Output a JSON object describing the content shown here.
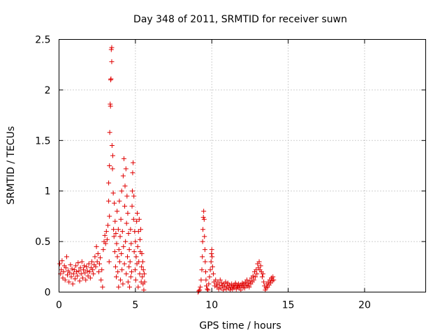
{
  "chart_data": {
    "type": "scatter",
    "title": "Day 348 of 2011, SRMTID for receiver suwn",
    "xlabel": "GPS time / hours",
    "ylabel": "SRMTID / TECUs",
    "xlim": [
      0,
      24
    ],
    "ylim": [
      0,
      2.5
    ],
    "x_ticks": [
      "0",
      "5",
      "10",
      "15",
      "20"
    ],
    "y_ticks": [
      "0",
      "0.5",
      "1",
      "1.5",
      "2",
      "2.5"
    ],
    "grid": true,
    "legend": "none",
    "marker": "plus",
    "series_color": "#e00000",
    "series": [
      {
        "points": [
          [
            0.05,
            0.28
          ],
          [
            0.1,
            0.18
          ],
          [
            0.15,
            0.22
          ],
          [
            0.2,
            0.31
          ],
          [
            0.25,
            0.14
          ],
          [
            0.3,
            0.2
          ],
          [
            0.35,
            0.26
          ],
          [
            0.4,
            0.12
          ],
          [
            0.45,
            0.24
          ],
          [
            0.5,
            0.35
          ],
          [
            0.55,
            0.17
          ],
          [
            0.6,
            0.21
          ],
          [
            0.65,
            0.1
          ],
          [
            0.7,
            0.19
          ],
          [
            0.75,
            0.27
          ],
          [
            0.8,
            0.15
          ],
          [
            0.85,
            0.23
          ],
          [
            0.9,
            0.08
          ],
          [
            0.95,
            0.18
          ],
          [
            1.0,
            0.22
          ],
          [
            1.05,
            0.13
          ],
          [
            1.1,
            0.26
          ],
          [
            1.15,
            0.2
          ],
          [
            1.2,
            0.16
          ],
          [
            1.25,
            0.29
          ],
          [
            1.3,
            0.21
          ],
          [
            1.35,
            0.11
          ],
          [
            1.4,
            0.24
          ],
          [
            1.45,
            0.18
          ],
          [
            1.5,
            0.3
          ],
          [
            1.55,
            0.14
          ],
          [
            1.6,
            0.22
          ],
          [
            1.65,
            0.26
          ],
          [
            1.7,
            0.19
          ],
          [
            1.75,
            0.12
          ],
          [
            1.8,
            0.25
          ],
          [
            1.85,
            0.21
          ],
          [
            1.9,
            0.16
          ],
          [
            1.95,
            0.28
          ],
          [
            2.0,
            0.2
          ],
          [
            2.05,
            0.14
          ],
          [
            2.1,
            0.24
          ],
          [
            2.15,
            0.3
          ],
          [
            2.2,
            0.22
          ],
          [
            2.25,
            0.18
          ],
          [
            2.3,
            0.27
          ],
          [
            2.35,
            0.35
          ],
          [
            2.4,
            0.25
          ],
          [
            2.45,
            0.45
          ],
          [
            2.5,
            0.3
          ],
          [
            2.55,
            0.38
          ],
          [
            2.6,
            0.2
          ],
          [
            2.65,
            0.28
          ],
          [
            2.7,
            0.34
          ],
          [
            2.75,
            0.12
          ],
          [
            2.8,
            0.22
          ],
          [
            2.85,
            0.05
          ],
          [
            2.9,
            0.42
          ],
          [
            2.95,
            0.5
          ],
          [
            3.0,
            0.56
          ],
          [
            3.05,
            0.48
          ],
          [
            3.1,
            0.6
          ],
          [
            3.15,
            0.52
          ],
          [
            3.2,
            0.66
          ],
          [
            3.25,
            0.9
          ],
          [
            3.25,
            1.08
          ],
          [
            3.28,
            0.3
          ],
          [
            3.3,
            0.75
          ],
          [
            3.3,
            1.25
          ],
          [
            3.32,
            1.58
          ],
          [
            3.35,
            1.86
          ],
          [
            3.37,
            1.84
          ],
          [
            3.38,
            2.1
          ],
          [
            3.4,
            2.11
          ],
          [
            3.42,
            2.4
          ],
          [
            3.45,
            2.28
          ],
          [
            3.45,
            2.42
          ],
          [
            3.47,
            1.45
          ],
          [
            3.5,
            1.22
          ],
          [
            3.52,
            1.35
          ],
          [
            3.55,
            0.98
          ],
          [
            3.57,
            0.62
          ],
          [
            3.6,
            0.55
          ],
          [
            3.62,
            0.88
          ],
          [
            3.65,
            0.4
          ],
          [
            3.67,
            0.7
          ],
          [
            3.7,
            0.25
          ],
          [
            3.72,
            0.58
          ],
          [
            3.75,
            0.15
          ],
          [
            3.77,
            0.48
          ],
          [
            3.8,
            0.8
          ],
          [
            3.82,
            0.35
          ],
          [
            3.85,
            0.2
          ],
          [
            3.88,
            0.62
          ],
          [
            3.9,
            0.05
          ],
          [
            3.92,
            0.42
          ],
          [
            3.95,
            0.9
          ],
          [
            3.97,
            0.3
          ],
          [
            4.0,
            0.55
          ],
          [
            4.02,
            0.12
          ],
          [
            4.05,
            0.72
          ],
          [
            4.08,
            0.38
          ],
          [
            4.1,
            1.0
          ],
          [
            4.12,
            0.22
          ],
          [
            4.15,
            0.6
          ],
          [
            4.18,
            0.08
          ],
          [
            4.2,
            1.15
          ],
          [
            4.22,
            0.45
          ],
          [
            4.25,
            1.32
          ],
          [
            4.28,
            0.28
          ],
          [
            4.3,
            0.85
          ],
          [
            4.32,
            1.05
          ],
          [
            4.35,
            0.5
          ],
          [
            4.38,
            1.22
          ],
          [
            4.4,
            0.18
          ],
          [
            4.42,
            0.68
          ],
          [
            4.45,
            0.95
          ],
          [
            4.48,
            0.35
          ],
          [
            4.5,
            0.78
          ],
          [
            4.52,
            0.1
          ],
          [
            4.55,
            0.58
          ],
          [
            4.58,
            0.25
          ],
          [
            4.6,
            0.42
          ],
          [
            4.62,
            0.05
          ],
          [
            4.65,
            0.3
          ],
          [
            4.68,
            0.62
          ],
          [
            4.7,
            0.15
          ],
          [
            4.72,
            0.48
          ],
          [
            4.75,
            0.2
          ],
          [
            4.78,
            0.85
          ],
          [
            4.8,
            1.0
          ],
          [
            4.82,
            1.18
          ],
          [
            4.85,
            1.28
          ],
          [
            4.88,
            0.72
          ],
          [
            4.9,
            0.95
          ],
          [
            4.92,
            0.4
          ],
          [
            4.95,
            0.6
          ],
          [
            4.98,
            0.22
          ],
          [
            5.0,
            0.5
          ],
          [
            5.02,
            0.12
          ],
          [
            5.05,
            0.35
          ],
          [
            5.08,
            0.7
          ],
          [
            5.1,
            0.28
          ],
          [
            5.12,
            0.78
          ],
          [
            5.15,
            0.45
          ],
          [
            5.18,
            0.05
          ],
          [
            5.2,
            0.6
          ],
          [
            5.22,
            0.3
          ],
          [
            5.25,
            0.72
          ],
          [
            5.28,
            0.18
          ],
          [
            5.3,
            0.52
          ],
          [
            5.32,
            0.4
          ],
          [
            5.35,
            0.62
          ],
          [
            5.38,
            0.1
          ],
          [
            5.4,
            0.25
          ],
          [
            5.42,
            0.38
          ],
          [
            5.45,
            0.15
          ],
          [
            5.48,
            0.3
          ],
          [
            5.5,
            0.08
          ],
          [
            5.52,
            0.22
          ],
          [
            5.55,
            0.02
          ],
          [
            5.58,
            0.18
          ],
          [
            5.6,
            0.1
          ],
          [
            9.1,
            0.0
          ],
          [
            9.15,
            0.01
          ],
          [
            9.2,
            0.02
          ],
          [
            9.25,
            0.05
          ],
          [
            9.3,
            0.12
          ],
          [
            9.35,
            0.22
          ],
          [
            9.38,
            0.35
          ],
          [
            9.4,
            0.5
          ],
          [
            9.42,
            0.62
          ],
          [
            9.45,
            0.74
          ],
          [
            9.47,
            0.8
          ],
          [
            9.5,
            0.72
          ],
          [
            9.52,
            0.55
          ],
          [
            9.55,
            0.42
          ],
          [
            9.57,
            0.3
          ],
          [
            9.6,
            0.2
          ],
          [
            9.62,
            0.12
          ],
          [
            9.65,
            0.06
          ],
          [
            9.7,
            0.03
          ],
          [
            9.75,
            0.02
          ],
          [
            9.8,
            0.08
          ],
          [
            9.85,
            0.15
          ],
          [
            9.9,
            0.22
          ],
          [
            9.95,
            0.3
          ],
          [
            9.98,
            0.38
          ],
          [
            10.0,
            0.42
          ],
          [
            10.02,
            0.35
          ],
          [
            10.05,
            0.25
          ],
          [
            10.1,
            0.18
          ],
          [
            10.15,
            0.1
          ],
          [
            10.2,
            0.06
          ],
          [
            10.25,
            0.12
          ],
          [
            10.3,
            0.08
          ],
          [
            10.35,
            0.05
          ],
          [
            10.4,
            0.1
          ],
          [
            10.45,
            0.03
          ],
          [
            10.5,
            0.07
          ],
          [
            10.55,
            0.12
          ],
          [
            10.6,
            0.04
          ],
          [
            10.65,
            0.09
          ],
          [
            10.7,
            0.06
          ],
          [
            10.75,
            0.02
          ],
          [
            10.8,
            0.08
          ],
          [
            10.85,
            0.05
          ],
          [
            10.9,
            0.1
          ],
          [
            10.95,
            0.03
          ],
          [
            11.0,
            0.06
          ],
          [
            11.05,
            0.09
          ],
          [
            11.1,
            0.04
          ],
          [
            11.15,
            0.07
          ],
          [
            11.2,
            0.02
          ],
          [
            11.25,
            0.05
          ],
          [
            11.3,
            0.08
          ],
          [
            11.35,
            0.03
          ],
          [
            11.4,
            0.06
          ],
          [
            11.45,
            0.04
          ],
          [
            11.5,
            0.07
          ],
          [
            11.55,
            0.09
          ],
          [
            11.6,
            0.03
          ],
          [
            11.65,
            0.06
          ],
          [
            11.7,
            0.05
          ],
          [
            11.75,
            0.08
          ],
          [
            11.8,
            0.04
          ],
          [
            11.85,
            0.07
          ],
          [
            11.9,
            0.02
          ],
          [
            11.95,
            0.06
          ],
          [
            12.0,
            0.09
          ],
          [
            12.05,
            0.05
          ],
          [
            12.1,
            0.08
          ],
          [
            12.15,
            0.04
          ],
          [
            12.2,
            0.1
          ],
          [
            12.25,
            0.07
          ],
          [
            12.3,
            0.12
          ],
          [
            12.35,
            0.06
          ],
          [
            12.4,
            0.09
          ],
          [
            12.45,
            0.05
          ],
          [
            12.5,
            0.11
          ],
          [
            12.55,
            0.08
          ],
          [
            12.6,
            0.14
          ],
          [
            12.65,
            0.1
          ],
          [
            12.7,
            0.16
          ],
          [
            12.75,
            0.12
          ],
          [
            12.8,
            0.2
          ],
          [
            12.85,
            0.15
          ],
          [
            12.9,
            0.22
          ],
          [
            12.95,
            0.18
          ],
          [
            13.0,
            0.28
          ],
          [
            13.05,
            0.24
          ],
          [
            13.1,
            0.3
          ],
          [
            13.15,
            0.22
          ],
          [
            13.2,
            0.26
          ],
          [
            13.25,
            0.2
          ],
          [
            13.3,
            0.15
          ],
          [
            13.35,
            0.18
          ],
          [
            13.4,
            0.1
          ],
          [
            13.45,
            0.06
          ],
          [
            13.5,
            0.02
          ],
          [
            13.55,
            0.04
          ],
          [
            13.6,
            0.08
          ],
          [
            13.65,
            0.05
          ],
          [
            13.7,
            0.1
          ],
          [
            13.75,
            0.07
          ],
          [
            13.8,
            0.12
          ],
          [
            13.85,
            0.09
          ],
          [
            13.9,
            0.14
          ],
          [
            13.95,
            0.11
          ],
          [
            14.0,
            0.15
          ],
          [
            14.05,
            0.12
          ]
        ]
      }
    ]
  }
}
